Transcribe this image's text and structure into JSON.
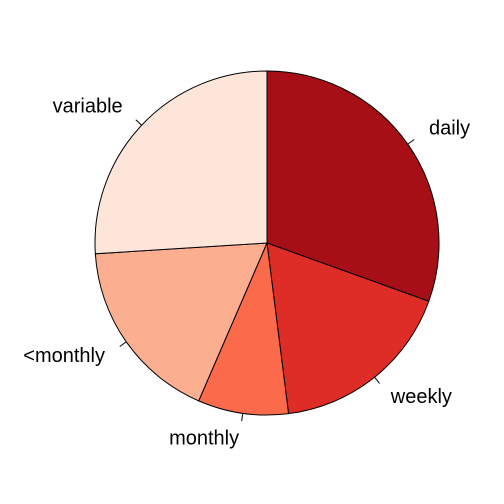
{
  "chart_data": {
    "type": "pie",
    "title": "",
    "slices": [
      {
        "label": "daily",
        "value": 30.5,
        "color": "#A50F15"
      },
      {
        "label": "weekly",
        "value": 17.5,
        "color": "#DE2D26"
      },
      {
        "label": "monthly",
        "value": 8.5,
        "color": "#FB6A4A"
      },
      {
        "label": "<monthly",
        "value": 17.5,
        "color": "#FCAE91"
      },
      {
        "label": "variable",
        "value": 26.0,
        "color": "#FEE5D9"
      }
    ],
    "start": "12 o'clock",
    "direction": "clockwise"
  }
}
